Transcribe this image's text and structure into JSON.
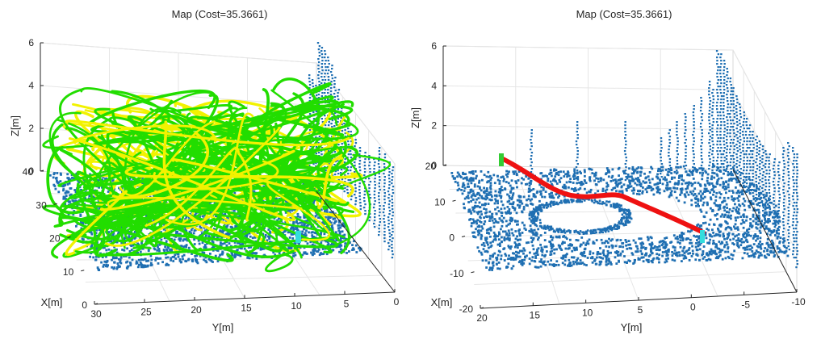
{
  "chart_data": [
    {
      "type": "scatter",
      "title": "Map (Cost=35.3661)",
      "xlabel": "X[m]",
      "ylabel": "Y[m]",
      "zlabel": "Z[m]",
      "x_ticks": [
        "0",
        "10",
        "20",
        "30",
        "40"
      ],
      "y_ticks": [
        "30",
        "25",
        "20",
        "15",
        "10",
        "5",
        "0"
      ],
      "z_ticks": [
        "0",
        "2",
        "4",
        "6"
      ],
      "xlim": [
        0,
        40
      ],
      "ylim": [
        0,
        30
      ],
      "zlim": [
        0,
        6
      ],
      "grid": true,
      "series": [
        {
          "kind": "point-cloud",
          "color": "#1f6fb2"
        },
        {
          "kind": "rrt-tree-branches",
          "color": "#22dd00"
        },
        {
          "kind": "rrt-tree-branches",
          "color": "#f2f200"
        },
        {
          "kind": "start-marker",
          "color": "#33dddd"
        }
      ]
    },
    {
      "type": "scatter",
      "title": "Map (Cost=35.3661)",
      "xlabel": "X[m]",
      "ylabel": "Y[m]",
      "zlabel": "Z[m]",
      "x_ticks": [
        "-20",
        "-10",
        "0",
        "10",
        "20"
      ],
      "y_ticks": [
        "20",
        "15",
        "10",
        "5",
        "0",
        "-5",
        "-10"
      ],
      "z_ticks": [
        "0",
        "2",
        "4",
        "6"
      ],
      "xlim": [
        -20,
        20
      ],
      "ylim": [
        -10,
        20
      ],
      "zlim": [
        0,
        6
      ],
      "grid": true,
      "series": [
        {
          "kind": "point-cloud",
          "color": "#1f6fb2"
        },
        {
          "kind": "planned-path",
          "color": "#ee1111"
        },
        {
          "kind": "start-marker",
          "color": "#33dddd"
        },
        {
          "kind": "goal-marker",
          "color": "#33cc33"
        }
      ]
    }
  ]
}
